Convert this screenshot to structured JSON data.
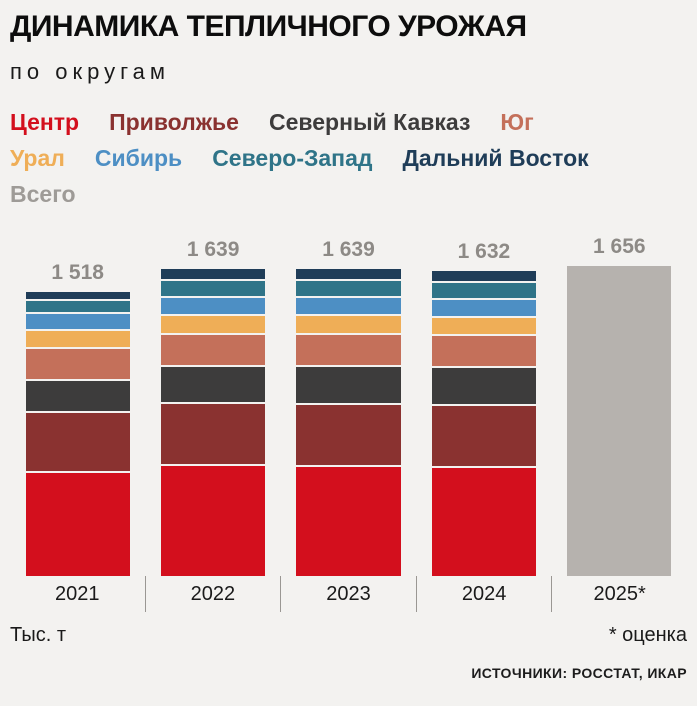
{
  "header": {
    "title": "ДИНАМИКА ТЕПЛИЧНОГО УРОЖАЯ",
    "subtitle": "по округам"
  },
  "legend": {
    "rows": [
      [
        {
          "label": "Центр",
          "color": "#d30f1d"
        },
        {
          "label": "Приволжье",
          "color": "#8a3230"
        },
        {
          "label": "Северный Кавказ",
          "color": "#3d3c3c"
        },
        {
          "label": "Юг",
          "color": "#c4705a"
        }
      ],
      [
        {
          "label": "Урал",
          "color": "#efae57"
        },
        {
          "label": "Сибирь",
          "color": "#4d8fc4"
        },
        {
          "label": "Северо-Запад",
          "color": "#2f7488"
        },
        {
          "label": "Дальний Восток",
          "color": "#1f3d58"
        }
      ],
      [
        {
          "label": "Всего",
          "color": "#9e9b97"
        }
      ]
    ]
  },
  "chart_data": {
    "type": "bar",
    "stacked": true,
    "categories": [
      "2021",
      "2022",
      "2023",
      "2024",
      "2025*"
    ],
    "totals": [
      1518,
      1639,
      1639,
      1632,
      1656
    ],
    "total_labels": [
      "1 518",
      "1 639",
      "1 639",
      "1 632",
      "1 656"
    ],
    "series": [
      {
        "name": "Центр",
        "color": "#d30f1d",
        "values": [
          550,
          590,
          585,
          575
        ]
      },
      {
        "name": "Приволжье",
        "color": "#8a3230",
        "values": [
          320,
          330,
          330,
          335
        ]
      },
      {
        "name": "Северный Кавказ",
        "color": "#3d3c3c",
        "values": [
          170,
          195,
          200,
          200
        ]
      },
      {
        "name": "Юг",
        "color": "#c4705a",
        "values": [
          175,
          170,
          170,
          170
        ]
      },
      {
        "name": "Урал",
        "color": "#efae57",
        "values": [
          95,
          105,
          105,
          100
        ]
      },
      {
        "name": "Сибирь",
        "color": "#4d8fc4",
        "values": [
          90,
          95,
          95,
          95
        ]
      },
      {
        "name": "Северо-Запад",
        "color": "#2f7488",
        "values": [
          70,
          90,
          90,
          90
        ]
      },
      {
        "name": "Дальний Восток",
        "color": "#1f3d58",
        "values": [
          48,
          64,
          64,
          67
        ]
      }
    ],
    "estimate_bar": {
      "category": "2025*",
      "name": "Всего",
      "value": 1656,
      "color": "#b6b2ae"
    },
    "ylabel": "Тыс. т",
    "legend_position": "top",
    "grid": false
  },
  "footer": {
    "unit": "Тыс. т",
    "estimate_note": "* оценка",
    "sources": "ИСТОЧНИКИ: РОССТАТ, ИКАР"
  }
}
